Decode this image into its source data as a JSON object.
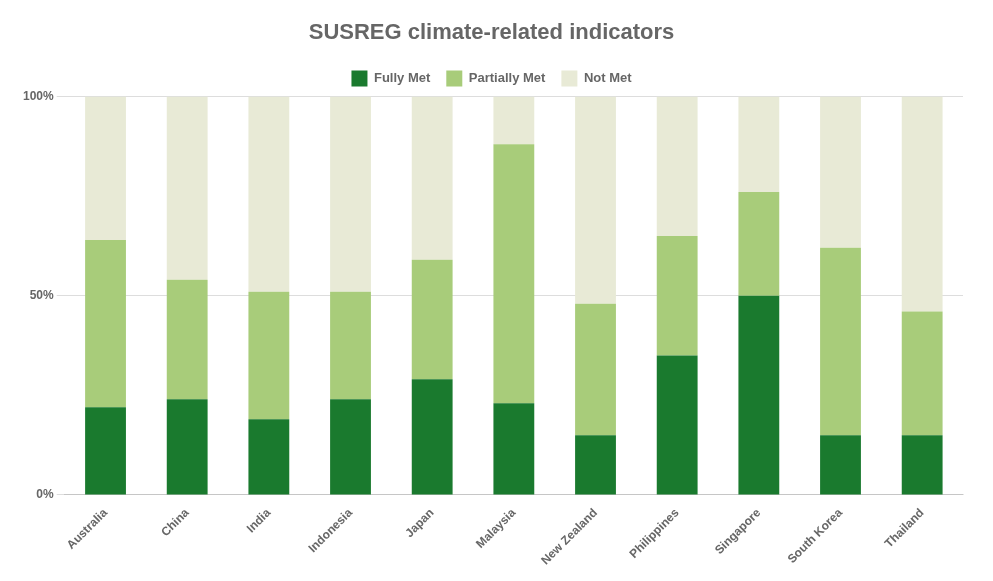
{
  "chart_data": {
    "type": "bar",
    "title": "SUSREG climate-related indicators",
    "categories": [
      "Australia",
      "China",
      "India",
      "Indonesia",
      "Japan",
      "Malaysia",
      "New Zealand",
      "Philippines",
      "Singapore",
      "South Korea",
      "Thailand"
    ],
    "series": [
      {
        "name": "Fully Met",
        "color": "#1a7a2e",
        "values": [
          22,
          24,
          19,
          24,
          29,
          23,
          15,
          35,
          50,
          15,
          15
        ]
      },
      {
        "name": "Partially Met",
        "color": "#a8cc7a",
        "values": [
          42,
          30,
          32,
          27,
          30,
          65,
          33,
          30,
          26,
          47,
          31
        ]
      },
      {
        "name": "Not Met",
        "color": "#e8ead6",
        "values": [
          36,
          46,
          49,
          49,
          41,
          12,
          52,
          35,
          24,
          38,
          54
        ]
      }
    ],
    "stacked": true,
    "ylim": [
      0,
      100
    ],
    "yticks": [
      {
        "value": 0,
        "label": "0%"
      },
      {
        "value": 50,
        "label": "50%"
      },
      {
        "value": 100,
        "label": "100%"
      }
    ],
    "grid": true,
    "legend": "top"
  }
}
